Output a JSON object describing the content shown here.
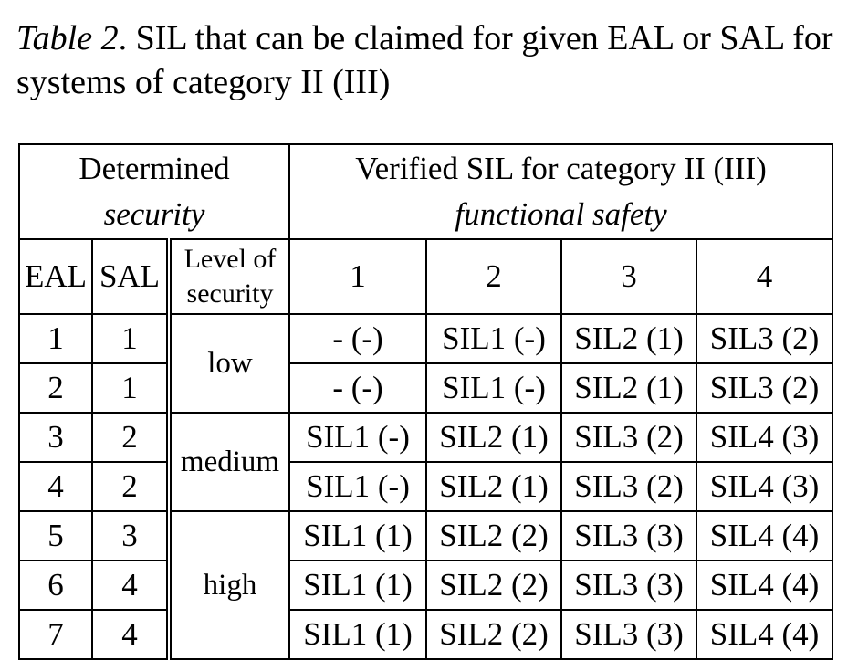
{
  "caption": {
    "label": "Table 2",
    "text": ". SIL that can be claimed for given EAL or SAL for systems of category II (III)"
  },
  "table": {
    "header_left_line1": "Determined",
    "header_left_line2": "security",
    "header_right_line1": "Verified SIL for category II (III)",
    "header_right_line2": "functional safety",
    "col_eal": "EAL",
    "col_sal": "SAL",
    "col_level_line1": "Level of",
    "col_level_line2": "security",
    "sil_columns": [
      "1",
      "2",
      "3",
      "4"
    ],
    "groups": [
      "low",
      "medium",
      "high"
    ],
    "rows": [
      {
        "eal": "1",
        "sal": "1",
        "cells": [
          "- (-)",
          "SIL1 (-)",
          "SIL2 (1)",
          "SIL3 (2)"
        ]
      },
      {
        "eal": "2",
        "sal": "1",
        "cells": [
          "- (-)",
          "SIL1 (-)",
          "SIL2 (1)",
          "SIL3 (2)"
        ]
      },
      {
        "eal": "3",
        "sal": "2",
        "cells": [
          "SIL1 (-)",
          "SIL2 (1)",
          "SIL3 (2)",
          "SIL4 (3)"
        ]
      },
      {
        "eal": "4",
        "sal": "2",
        "cells": [
          "SIL1 (-)",
          "SIL2 (1)",
          "SIL3 (2)",
          "SIL4 (3)"
        ]
      },
      {
        "eal": "5",
        "sal": "3",
        "cells": [
          "SIL1 (1)",
          "SIL2 (2)",
          "SIL3 (3)",
          "SIL4 (4)"
        ]
      },
      {
        "eal": "6",
        "sal": "4",
        "cells": [
          "SIL1 (1)",
          "SIL2 (2)",
          "SIL3 (3)",
          "SIL4 (4)"
        ]
      },
      {
        "eal": "7",
        "sal": "4",
        "cells": [
          "SIL1 (1)",
          "SIL2 (2)",
          "SIL3 (3)",
          "SIL4 (4)"
        ]
      }
    ]
  }
}
